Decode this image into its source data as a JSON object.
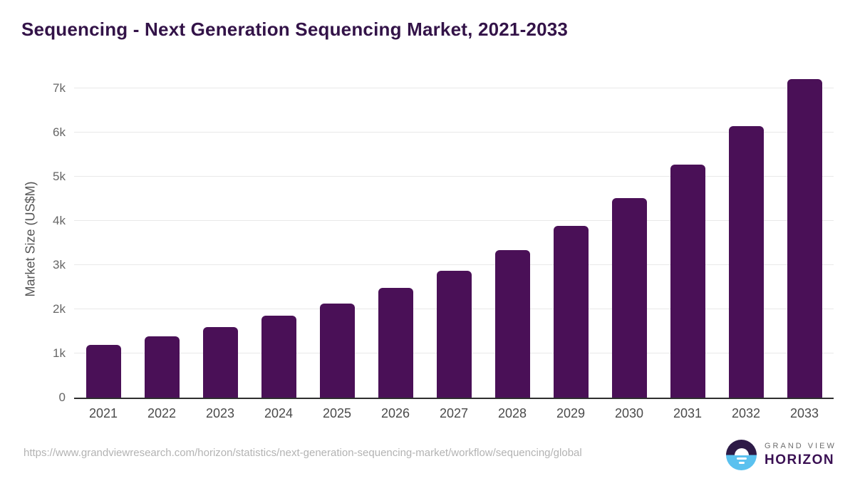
{
  "title": "Sequencing - Next Generation Sequencing Market, 2021-2033",
  "chart_data": {
    "type": "bar",
    "title": "Sequencing - Next Generation Sequencing Market, 2021-2033",
    "categories": [
      "2021",
      "2022",
      "2023",
      "2024",
      "2025",
      "2026",
      "2027",
      "2028",
      "2029",
      "2030",
      "2031",
      "2032",
      "2033"
    ],
    "values": [
      1200,
      1380,
      1600,
      1850,
      2130,
      2480,
      2870,
      3340,
      3880,
      4510,
      5270,
      6150,
      7210
    ],
    "xlabel": "",
    "ylabel": "Market Size (US$M)",
    "yticks": [
      "0",
      "1k",
      "2k",
      "3k",
      "4k",
      "5k",
      "6k",
      "7k"
    ],
    "ytick_values": [
      0,
      1000,
      2000,
      3000,
      4000,
      5000,
      6000,
      7000
    ],
    "ylim": [
      0,
      7450
    ],
    "grid": true,
    "legend": false,
    "bar_color": "#4a1057",
    "title_color": "#331348",
    "grid_color": "#e9e9e9",
    "axis_line_color": "#2f2f2f"
  },
  "footer": {
    "source_url": "https://www.grandviewresearch.com/horizon/statistics/next-generation-sequencing-market/workflow/sequencing/global",
    "logo": {
      "top_text": "GRAND VIEW",
      "bottom_text": "HORIZON",
      "icon_top_color": "#2d1a47",
      "icon_bottom_color": "#5ac1ef"
    }
  }
}
